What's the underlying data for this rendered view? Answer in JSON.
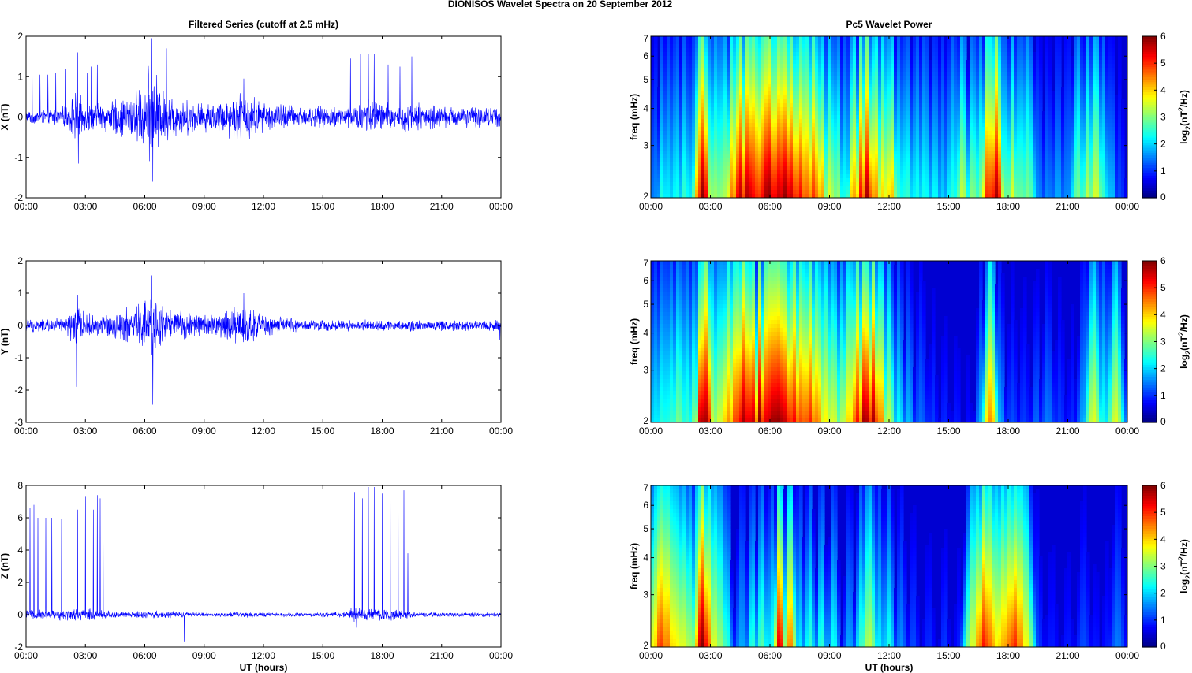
{
  "figure_title": "DIONISOS Wavelet Spectra on 20 September 2012",
  "left_column_title": "Filtered Series (cutoff at 2.5 mHz)",
  "right_column_title": "Pc5 Wavelet Power",
  "colors": {
    "trace": "#0000ff",
    "axis": "#000000",
    "grid_bg": "#ffffff"
  },
  "chart_data": [
    {
      "type": "line",
      "title": "Filtered Series (cutoff at 2.5 mHz)",
      "xlabel": "",
      "ylabel": "X (nT)",
      "xlim": [
        "00:00",
        "00:00"
      ],
      "x_ticks": [
        "00:00",
        "03:00",
        "06:00",
        "09:00",
        "12:00",
        "15:00",
        "18:00",
        "21:00",
        "00:00"
      ],
      "ylim": [
        -2,
        2
      ],
      "y_ticks": [
        -2,
        -1,
        0,
        1,
        2
      ],
      "series": [
        {
          "color": "#0000ff",
          "envelope_hours": [
            0,
            1,
            2,
            2.5,
            3,
            4,
            5,
            6,
            6.3,
            7,
            8,
            9,
            10,
            11,
            12,
            13,
            14,
            15,
            16,
            17,
            17.5,
            18,
            19,
            20,
            21,
            22,
            23,
            24
          ],
          "envelope_amplitude_nT": [
            0.2,
            0.2,
            0.3,
            0.7,
            0.4,
            0.4,
            0.6,
            0.9,
            1.6,
            0.7,
            0.5,
            0.4,
            0.5,
            0.8,
            0.4,
            0.4,
            0.3,
            0.3,
            0.3,
            0.5,
            0.6,
            0.4,
            0.4,
            0.4,
            0.3,
            0.3,
            0.3,
            0.3
          ],
          "spikes": [
            {
              "h": 0.3,
              "v": 1.1
            },
            {
              "h": 0.7,
              "v": 1.05
            },
            {
              "h": 1.1,
              "v": 1.05
            },
            {
              "h": 1.5,
              "v": 1.1
            },
            {
              "h": 2.0,
              "v": 1.2
            },
            {
              "h": 2.6,
              "v": 1.6
            },
            {
              "h": 2.65,
              "v": -1.15
            },
            {
              "h": 3.1,
              "v": 1.1
            },
            {
              "h": 3.3,
              "v": 1.25
            },
            {
              "h": 3.6,
              "v": 1.3
            },
            {
              "h": 6.35,
              "v": 1.95
            },
            {
              "h": 6.4,
              "v": -1.6
            },
            {
              "h": 7.1,
              "v": 1.7
            },
            {
              "h": 11.0,
              "v": 0.95
            },
            {
              "h": 16.4,
              "v": 1.45
            },
            {
              "h": 16.9,
              "v": 1.55
            },
            {
              "h": 17.3,
              "v": 1.55
            },
            {
              "h": 17.6,
              "v": 1.55
            },
            {
              "h": 18.3,
              "v": 1.3
            },
            {
              "h": 18.9,
              "v": 1.25
            },
            {
              "h": 19.5,
              "v": 1.5
            }
          ]
        }
      ]
    },
    {
      "type": "line",
      "title": "",
      "xlabel": "",
      "ylabel": "Y (nT)",
      "xlim": [
        "00:00",
        "00:00"
      ],
      "x_ticks": [
        "00:00",
        "03:00",
        "06:00",
        "09:00",
        "12:00",
        "15:00",
        "18:00",
        "21:00",
        "00:00"
      ],
      "ylim": [
        -3,
        2
      ],
      "y_ticks": [
        -3,
        -2,
        -1,
        0,
        1,
        2
      ],
      "series": [
        {
          "color": "#0000ff",
          "envelope_hours": [
            0,
            1,
            2,
            2.5,
            3,
            4,
            5,
            6,
            6.3,
            7,
            8,
            9,
            10,
            11,
            12,
            13,
            14,
            15,
            16,
            17,
            18,
            19,
            20,
            21,
            22,
            23,
            24
          ],
          "envelope_amplitude_nT": [
            0.25,
            0.25,
            0.3,
            0.8,
            0.4,
            0.4,
            0.6,
            0.9,
            1.3,
            0.6,
            0.5,
            0.4,
            0.5,
            0.8,
            0.4,
            0.3,
            0.2,
            0.2,
            0.2,
            0.2,
            0.2,
            0.2,
            0.2,
            0.2,
            0.2,
            0.2,
            0.3
          ],
          "spikes": [
            {
              "h": 2.55,
              "v": -1.9
            },
            {
              "h": 2.6,
              "v": 0.95
            },
            {
              "h": 6.35,
              "v": 1.55
            },
            {
              "h": 6.4,
              "v": -2.45
            },
            {
              "h": 11.0,
              "v": 1.0
            },
            {
              "h": 23.95,
              "v": -0.45
            }
          ]
        }
      ]
    },
    {
      "type": "line",
      "title": "",
      "xlabel": "UT (hours)",
      "ylabel": "Z (nT)",
      "xlim": [
        "00:00",
        "00:00"
      ],
      "x_ticks": [
        "00:00",
        "03:00",
        "06:00",
        "09:00",
        "12:00",
        "15:00",
        "18:00",
        "21:00",
        "00:00"
      ],
      "ylim": [
        -2,
        8
      ],
      "y_ticks": [
        -2,
        0,
        2,
        4,
        6,
        8
      ],
      "series": [
        {
          "color": "#0000ff",
          "envelope_hours": [
            0,
            1,
            2,
            3,
            4,
            5,
            6,
            7,
            8,
            9,
            10,
            11,
            12,
            13,
            14,
            15,
            16,
            16.5,
            17,
            18,
            19,
            19.5,
            20,
            21,
            22,
            23,
            24
          ],
          "envelope_amplitude_nT": [
            0.35,
            0.35,
            0.4,
            0.45,
            0.35,
            0.2,
            0.3,
            0.25,
            0.2,
            0.15,
            0.15,
            0.2,
            0.15,
            0.15,
            0.15,
            0.15,
            0.2,
            0.5,
            0.45,
            0.45,
            0.4,
            0.2,
            0.15,
            0.15,
            0.15,
            0.15,
            0.15
          ],
          "spikes": [
            {
              "h": 0.2,
              "v": 6.6
            },
            {
              "h": 0.4,
              "v": 6.8
            },
            {
              "h": 0.6,
              "v": 6.0
            },
            {
              "h": 1.0,
              "v": 6.0
            },
            {
              "h": 1.3,
              "v": 6.0
            },
            {
              "h": 1.8,
              "v": 5.9
            },
            {
              "h": 2.6,
              "v": 6.5
            },
            {
              "h": 3.0,
              "v": 7.3
            },
            {
              "h": 3.4,
              "v": 6.5
            },
            {
              "h": 3.6,
              "v": 7.4
            },
            {
              "h": 3.75,
              "v": 7.2
            },
            {
              "h": 3.9,
              "v": 5.0
            },
            {
              "h": 8.0,
              "v": -1.7
            },
            {
              "h": 16.6,
              "v": 7.6
            },
            {
              "h": 16.7,
              "v": -0.8
            },
            {
              "h": 17.0,
              "v": 7.2
            },
            {
              "h": 17.3,
              "v": 7.9
            },
            {
              "h": 17.6,
              "v": 7.9
            },
            {
              "h": 18.0,
              "v": 7.5
            },
            {
              "h": 18.4,
              "v": 7.8
            },
            {
              "h": 18.8,
              "v": 7.0
            },
            {
              "h": 19.1,
              "v": 7.7
            },
            {
              "h": 19.3,
              "v": 3.8
            }
          ]
        }
      ]
    },
    {
      "type": "heatmap",
      "title": "Pc5 Wavelet Power",
      "xlabel": "",
      "ylabel": "freq (mHz)",
      "xlim": [
        "00:00",
        "00:00"
      ],
      "x_ticks": [
        "00:00",
        "03:00",
        "06:00",
        "09:00",
        "12:00",
        "15:00",
        "18:00",
        "21:00",
        "00:00"
      ],
      "y_scale": "log",
      "ylim": [
        2,
        7
      ],
      "y_ticks": [
        2,
        3,
        4,
        5,
        6,
        7
      ],
      "colorbar": {
        "label": "log2(nT2/Hz)",
        "range": [
          0,
          6
        ],
        "ticks": [
          0,
          1,
          2,
          3,
          4,
          5,
          6
        ],
        "colormap": "jet"
      },
      "peak_hours": [
        0.2,
        0.6,
        0.9,
        1.3,
        1.7,
        2.1,
        2.5,
        2.65,
        3.0,
        3.3,
        3.7,
        4.1,
        4.5,
        4.9,
        5.2,
        5.6,
        5.9,
        6.2,
        6.5,
        6.8,
        7.1,
        7.5,
        7.8,
        8.2,
        8.6,
        9.0,
        9.4,
        9.8,
        10.2,
        10.6,
        10.9,
        11.3,
        11.7,
        12.1,
        12.5,
        12.9,
        13.4,
        13.8,
        14.3,
        14.7,
        15.2,
        15.7,
        16.2,
        16.6,
        17.0,
        17.4,
        17.8,
        18.2,
        18.6,
        19.0,
        19.5,
        20.0,
        20.5,
        21.0,
        21.5,
        22.0,
        22.4,
        22.8,
        23.2,
        23.6
      ],
      "peak_levels": [
        1.6,
        2.5,
        2.2,
        2.4,
        2.6,
        2.4,
        5.0,
        6.0,
        3.4,
        3.2,
        3.3,
        4.6,
        5.7,
        5.8,
        5.3,
        5.3,
        6.0,
        5.6,
        5.7,
        6.0,
        5.6,
        5.4,
        4.8,
        5.0,
        4.5,
        3.6,
        3.2,
        2.4,
        4.4,
        5.3,
        5.8,
        4.5,
        4.0,
        4.2,
        2.6,
        2.6,
        2.4,
        2.4,
        2.4,
        2.0,
        2.5,
        3.5,
        3.2,
        3.0,
        5.2,
        5.8,
        3.0,
        3.6,
        3.0,
        3.0,
        1.6,
        1.6,
        1.8,
        1.6,
        3.0,
        3.4,
        3.6,
        2.6,
        2.0,
        1.2
      ]
    },
    {
      "type": "heatmap",
      "title": "",
      "xlabel": "",
      "ylabel": "freq (mHz)",
      "xlim": [
        "00:00",
        "00:00"
      ],
      "x_ticks": [
        "00:00",
        "03:00",
        "06:00",
        "09:00",
        "12:00",
        "15:00",
        "18:00",
        "21:00",
        "00:00"
      ],
      "y_scale": "log",
      "ylim": [
        2,
        7
      ],
      "y_ticks": [
        2,
        3,
        4,
        5,
        6,
        7
      ],
      "colorbar": {
        "label": "log2(nT2/Hz)",
        "range": [
          0,
          6
        ],
        "ticks": [
          0,
          1,
          2,
          3,
          4,
          5,
          6
        ],
        "colormap": "jet"
      },
      "peak_hours": [
        0.2,
        0.6,
        1.0,
        1.4,
        1.8,
        2.2,
        2.55,
        2.75,
        3.1,
        3.5,
        3.9,
        4.3,
        4.7,
        5.1,
        5.5,
        5.9,
        6.2,
        6.5,
        6.8,
        7.2,
        7.6,
        8.0,
        8.4,
        8.8,
        9.2,
        9.6,
        10.0,
        10.4,
        10.8,
        11.2,
        11.6,
        12.0,
        12.5,
        13.0,
        13.6,
        14.2,
        14.8,
        15.4,
        16.0,
        16.6,
        17.1,
        17.6,
        18.2,
        18.8,
        19.4,
        20.0,
        20.6,
        21.2,
        21.8,
        22.3,
        22.8,
        23.4
      ],
      "peak_levels": [
        2.2,
        2.5,
        2.6,
        3.0,
        2.6,
        3.0,
        6.0,
        5.8,
        3.4,
        3.6,
        4.4,
        5.0,
        5.8,
        5.8,
        6.0,
        5.6,
        6.0,
        6.0,
        5.7,
        5.3,
        4.9,
        5.1,
        4.6,
        3.8,
        3.6,
        3.3,
        4.0,
        5.2,
        6.0,
        5.8,
        4.6,
        3.4,
        2.3,
        1.9,
        1.4,
        1.1,
        1.0,
        0.9,
        0.8,
        1.8,
        4.4,
        1.8,
        1.2,
        1.1,
        1.4,
        1.5,
        1.1,
        1.0,
        1.8,
        3.6,
        2.4,
        3.6
      ]
    },
    {
      "type": "heatmap",
      "title": "",
      "xlabel": "UT (hours)",
      "ylabel": "freq (mHz)",
      "xlim": [
        "00:00",
        "00:00"
      ],
      "x_ticks": [
        "00:00",
        "03:00",
        "06:00",
        "09:00",
        "12:00",
        "15:00",
        "18:00",
        "21:00",
        "00:00"
      ],
      "y_scale": "log",
      "ylim": [
        2,
        7
      ],
      "y_ticks": [
        2,
        3,
        4,
        5,
        6,
        7
      ],
      "colorbar": {
        "label": "log2(nT2/Hz)",
        "range": [
          0,
          6
        ],
        "ticks": [
          0,
          1,
          2,
          3,
          4,
          5,
          6
        ],
        "colormap": "jet"
      },
      "peak_hours": [
        0.2,
        0.5,
        0.8,
        1.1,
        1.4,
        1.7,
        2.0,
        2.3,
        2.6,
        2.9,
        3.2,
        3.5,
        3.8,
        4.6,
        5.1,
        5.6,
        6.1,
        6.5,
        7.0,
        7.5,
        8.0,
        8.6,
        9.2,
        10.0,
        10.6,
        11.0,
        11.5,
        12.0,
        12.6,
        13.2,
        14.0,
        14.8,
        15.5,
        16.2,
        16.5,
        16.8,
        17.1,
        17.4,
        17.7,
        18.0,
        18.3,
        18.6,
        18.9,
        19.4,
        20.2,
        21.0,
        21.8,
        22.4,
        23.0,
        23.5
      ],
      "peak_levels": [
        4.0,
        5.0,
        4.6,
        4.0,
        3.8,
        3.6,
        3.2,
        3.8,
        6.0,
        4.6,
        3.6,
        3.2,
        2.6,
        1.8,
        2.6,
        2.8,
        2.4,
        5.6,
        4.6,
        2.2,
        2.6,
        2.6,
        2.4,
        1.8,
        2.6,
        3.4,
        2.2,
        2.4,
        1.6,
        1.2,
        1.0,
        1.1,
        0.9,
        3.6,
        4.4,
        5.2,
        4.6,
        3.8,
        4.2,
        4.6,
        5.2,
        4.6,
        3.8,
        1.2,
        0.9,
        0.9,
        1.2,
        0.9,
        0.9,
        1.5
      ]
    }
  ]
}
